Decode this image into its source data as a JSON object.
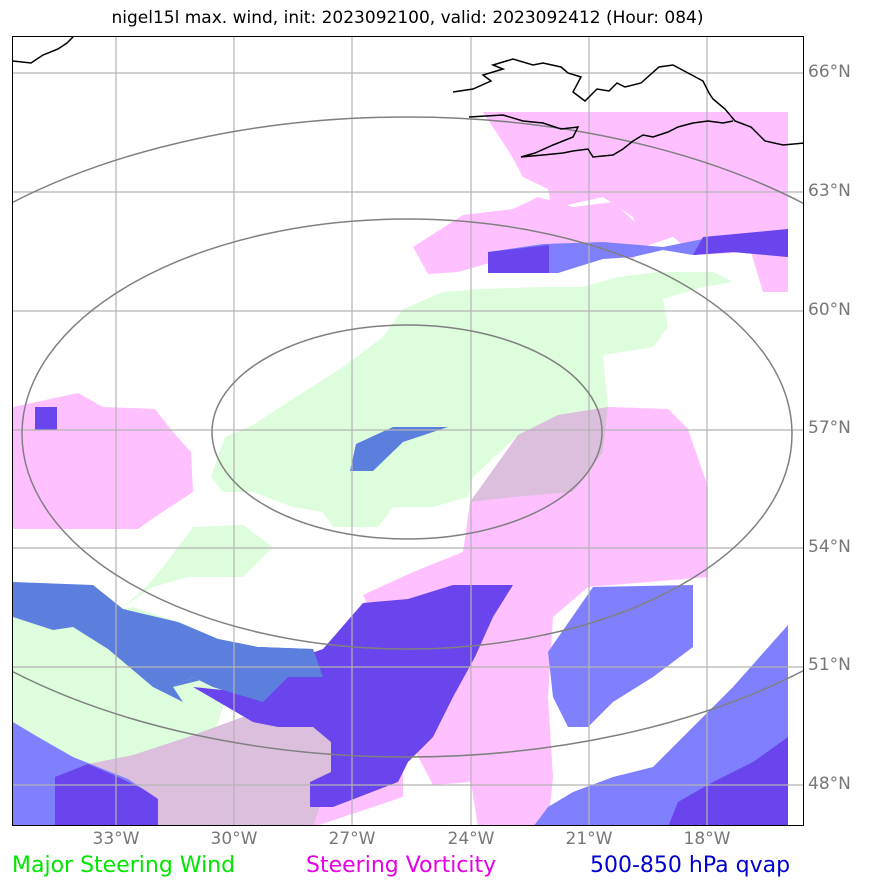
{
  "title": "nigel15l max. wind, init: 2023092100, valid: 2023092412 (Hour: 084)",
  "legend": [
    {
      "label": "Major Steering Wind",
      "color": "#00e600"
    },
    {
      "label": "Steering Vorticity",
      "color": "#e600e6"
    },
    {
      "label": "500-850 hPa qvap",
      "color": "#0000cc"
    }
  ],
  "lat_labels": [
    "66°N",
    "63°N",
    "60°N",
    "57°N",
    "54°N",
    "51°N",
    "48°N"
  ],
  "lon_labels": [
    "33°W",
    "30°W",
    "27°W",
    "24°W",
    "21°W",
    "18°W"
  ],
  "colors": {
    "wind_fill": "#ddfddd",
    "vorticity_fill": "#ffc0ff",
    "qvap_medium": "#8080ff",
    "qvap_steel": "#5c7fdd",
    "qvap_dark": "#6a44ec",
    "overlap": "#dcbfdc",
    "grid": "#b4b4b4",
    "range_rings": "#808080",
    "coastline": "#000000"
  }
}
